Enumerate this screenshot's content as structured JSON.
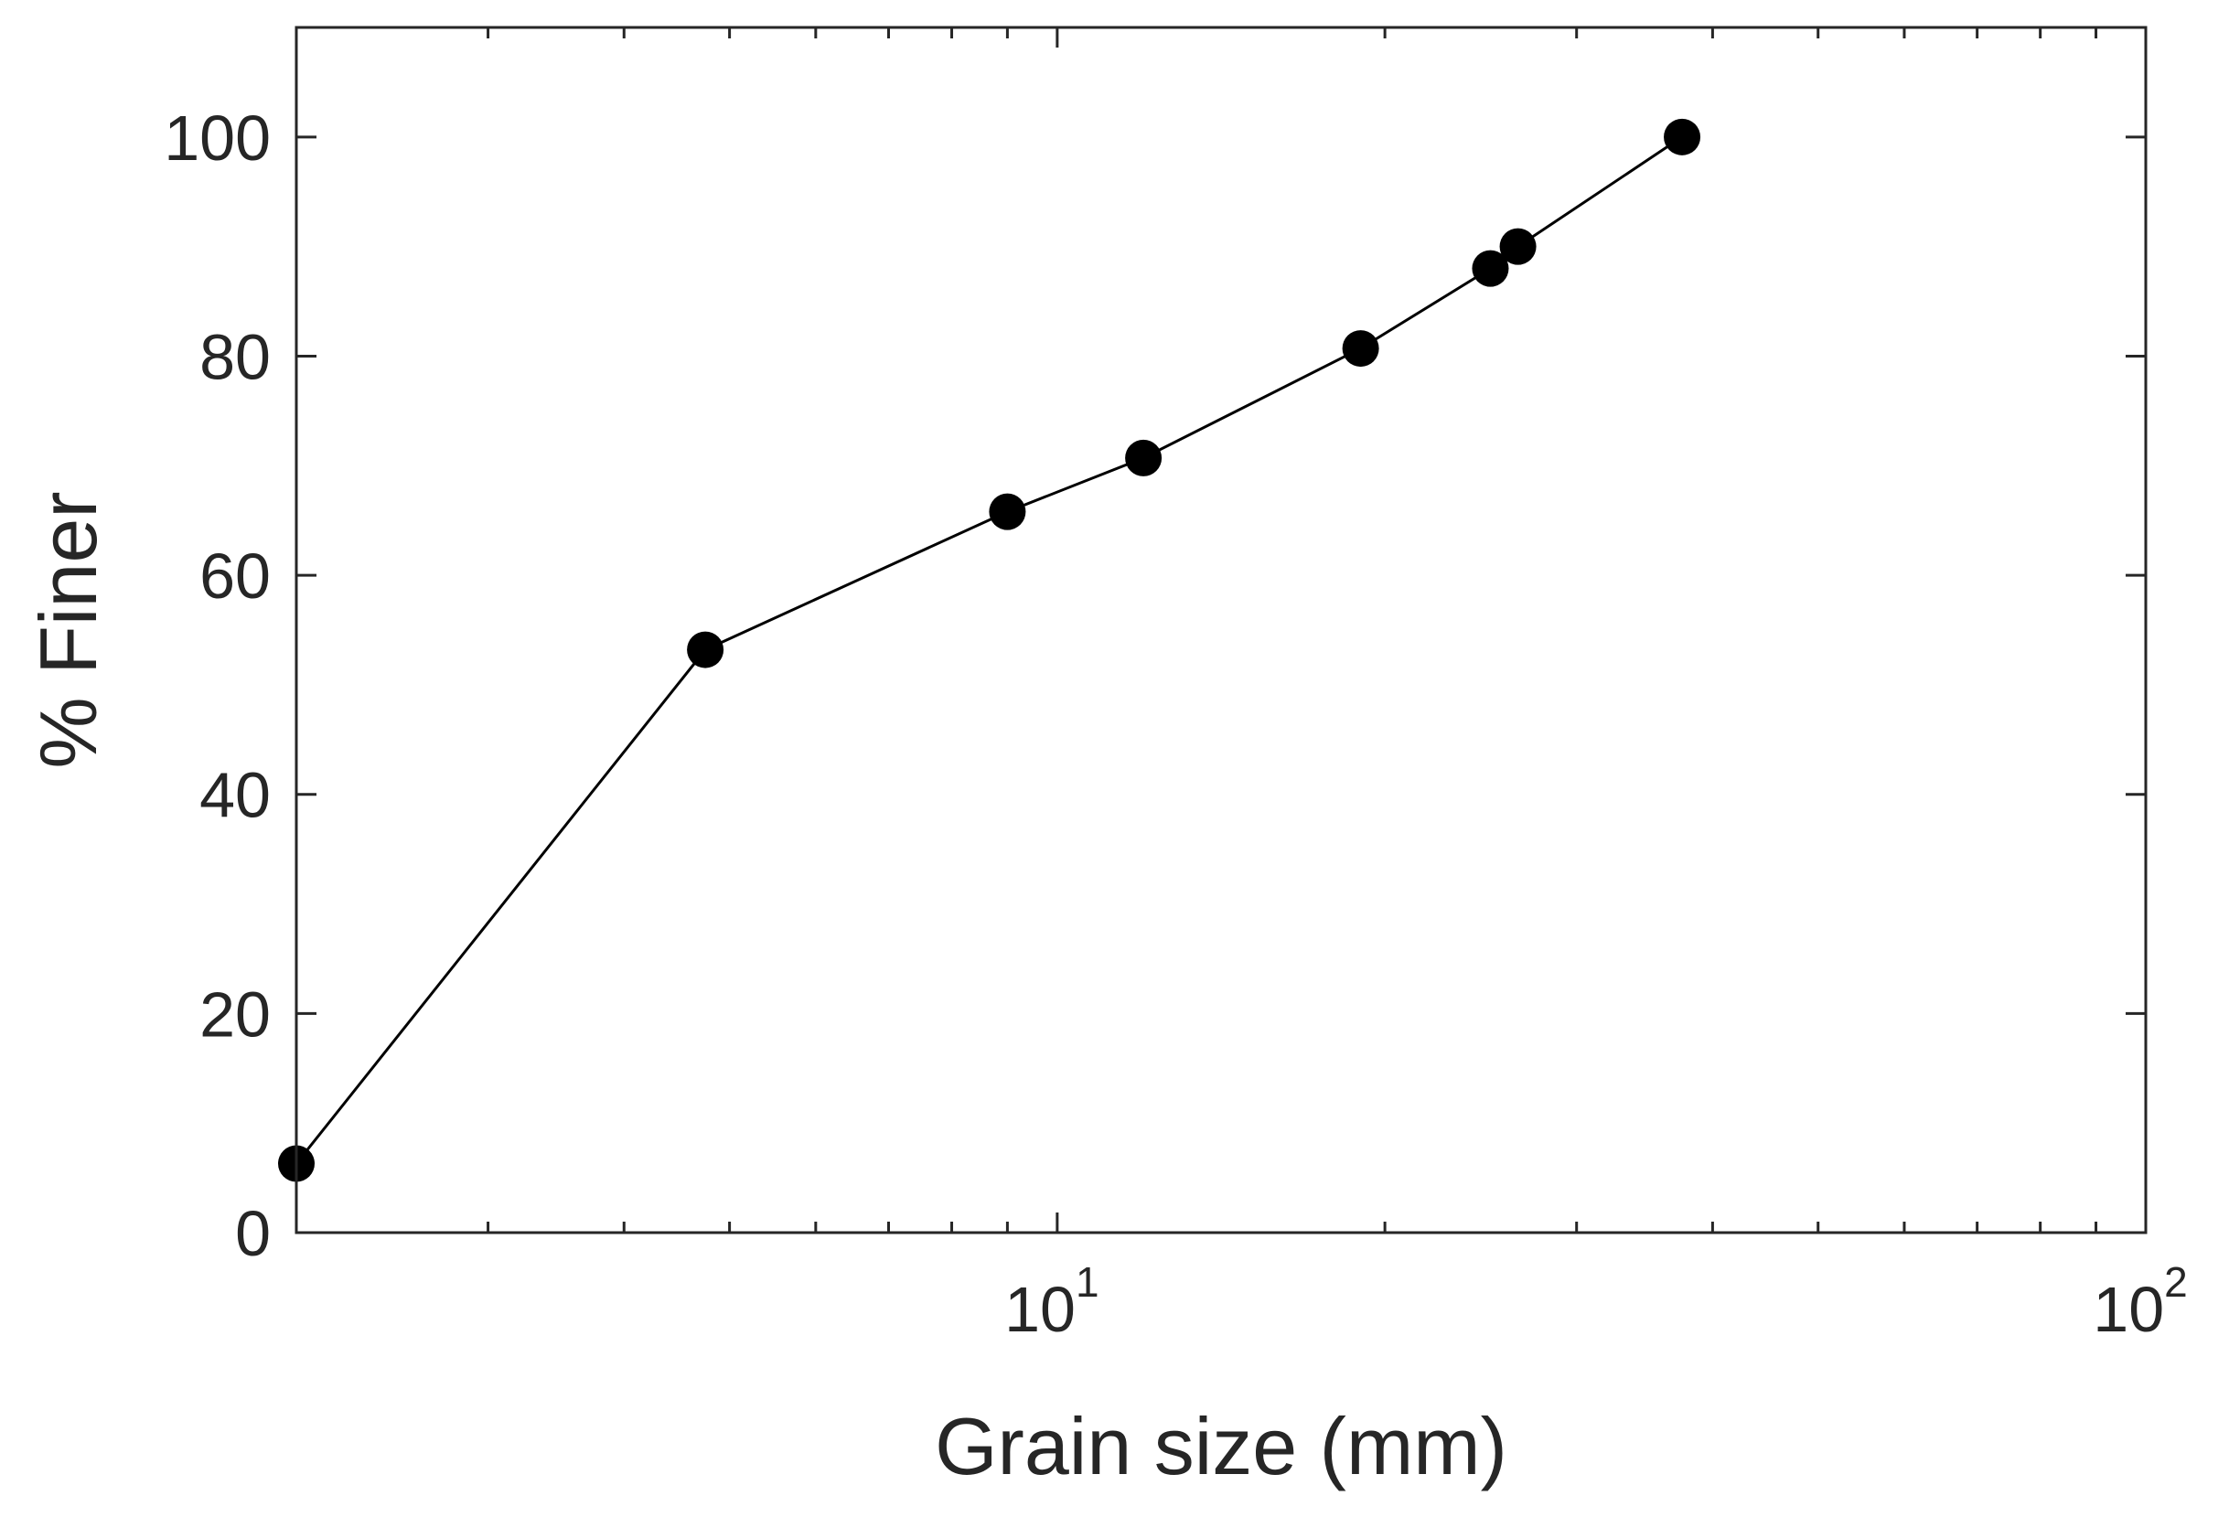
{
  "chart_data": {
    "type": "line",
    "xscale": "log",
    "xlim": [
      2,
      100
    ],
    "ylim": [
      0,
      110
    ],
    "xlabel": "Grain size (mm)",
    "ylabel": "% Finer",
    "x_ticks": [
      {
        "value": 10,
        "base": "10",
        "exponent": "1"
      },
      {
        "value": 100,
        "base": "10",
        "exponent": "2"
      }
    ],
    "y_ticks": [
      {
        "value": 0,
        "label": "0"
      },
      {
        "value": 20,
        "label": "20"
      },
      {
        "value": 40,
        "label": "40"
      },
      {
        "value": 60,
        "label": "60"
      },
      {
        "value": 80,
        "label": "80"
      },
      {
        "value": 100,
        "label": "100"
      }
    ],
    "grid": false,
    "series": [
      {
        "marker": "filled-circle",
        "color": "#000000",
        "points": [
          {
            "x": 2.0,
            "y": 6.3
          },
          {
            "x": 4.75,
            "y": 53.2
          },
          {
            "x": 9.0,
            "y": 65.8
          },
          {
            "x": 12.0,
            "y": 70.7
          },
          {
            "x": 19.0,
            "y": 80.7
          },
          {
            "x": 25.0,
            "y": 88.0
          },
          {
            "x": 26.5,
            "y": 90.0
          },
          {
            "x": 37.5,
            "y": 100.0
          }
        ]
      }
    ]
  }
}
